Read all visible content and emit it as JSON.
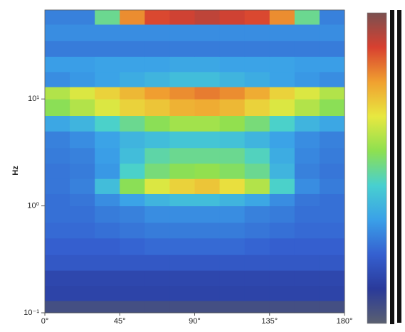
{
  "chart_data": {
    "type": "heatmap",
    "ylabel": "Hz",
    "log_y": true,
    "xbins": [
      0,
      15,
      30,
      45,
      60,
      75,
      90,
      105,
      120,
      135,
      150,
      165,
      180
    ],
    "ybins": [
      0.1,
      0.13,
      0.18,
      0.25,
      0.35,
      0.5,
      0.7,
      1,
      1.3,
      1.8,
      2.5,
      3.5,
      5,
      7,
      10,
      13,
      18,
      25,
      35,
      50,
      68
    ],
    "xlim": [
      0,
      180
    ],
    "ylim": [
      0.1,
      68
    ],
    "xticks": [
      {
        "value": 0,
        "label": "0°"
      },
      {
        "value": 45,
        "label": "45°"
      },
      {
        "value": 90,
        "label": "90°"
      },
      {
        "value": 135,
        "label": "135°"
      },
      {
        "value": 180,
        "label": "180°"
      }
    ],
    "yticks": [
      {
        "value": 0.1,
        "label": "10⁻¹"
      },
      {
        "value": 1,
        "label": "10⁰"
      },
      {
        "value": 10,
        "label": "10¹"
      }
    ],
    "zlim": [
      0,
      1
    ],
    "colormap": [
      "#5a6070",
      "#2a3a9a",
      "#3560d0",
      "#3aa0e8",
      "#48d0d0",
      "#8ee050",
      "#e8e840",
      "#f0a030",
      "#d84030",
      "#7a5050"
    ],
    "z": [
      [
        0.05,
        0.05,
        0.05,
        0.05,
        0.05,
        0.05,
        0.05,
        0.05,
        0.05,
        0.05,
        0.05,
        0.05
      ],
      [
        0.14,
        0.14,
        0.14,
        0.14,
        0.14,
        0.14,
        0.14,
        0.14,
        0.14,
        0.14,
        0.14,
        0.14
      ],
      [
        0.15,
        0.15,
        0.15,
        0.15,
        0.15,
        0.15,
        0.15,
        0.15,
        0.15,
        0.15,
        0.15,
        0.15
      ],
      [
        0.2,
        0.2,
        0.2,
        0.2,
        0.2,
        0.2,
        0.2,
        0.2,
        0.2,
        0.2,
        0.2,
        0.2
      ],
      [
        0.22,
        0.22,
        0.22,
        0.23,
        0.24,
        0.24,
        0.24,
        0.24,
        0.23,
        0.22,
        0.22,
        0.22
      ],
      [
        0.24,
        0.24,
        0.25,
        0.26,
        0.27,
        0.27,
        0.27,
        0.27,
        0.26,
        0.25,
        0.24,
        0.24
      ],
      [
        0.25,
        0.25,
        0.27,
        0.28,
        0.3,
        0.3,
        0.3,
        0.3,
        0.28,
        0.27,
        0.25,
        0.25
      ],
      [
        0.25,
        0.26,
        0.3,
        0.34,
        0.38,
        0.4,
        0.4,
        0.38,
        0.35,
        0.3,
        0.26,
        0.25
      ],
      [
        0.26,
        0.28,
        0.4,
        0.55,
        0.65,
        0.7,
        0.72,
        0.68,
        0.6,
        0.45,
        0.3,
        0.27
      ],
      [
        0.26,
        0.27,
        0.32,
        0.45,
        0.52,
        0.55,
        0.56,
        0.54,
        0.5,
        0.38,
        0.28,
        0.26
      ],
      [
        0.27,
        0.28,
        0.33,
        0.4,
        0.48,
        0.5,
        0.5,
        0.5,
        0.46,
        0.36,
        0.29,
        0.27
      ],
      [
        0.28,
        0.3,
        0.34,
        0.38,
        0.4,
        0.42,
        0.42,
        0.41,
        0.38,
        0.34,
        0.3,
        0.28
      ],
      [
        0.35,
        0.38,
        0.45,
        0.5,
        0.55,
        0.58,
        0.58,
        0.56,
        0.52,
        0.45,
        0.38,
        0.35
      ],
      [
        0.55,
        0.6,
        0.65,
        0.7,
        0.72,
        0.75,
        0.76,
        0.74,
        0.7,
        0.65,
        0.6,
        0.55
      ],
      [
        0.6,
        0.65,
        0.7,
        0.74,
        0.78,
        0.8,
        0.82,
        0.8,
        0.76,
        0.7,
        0.65,
        0.6
      ],
      [
        0.3,
        0.32,
        0.34,
        0.36,
        0.38,
        0.4,
        0.4,
        0.38,
        0.36,
        0.34,
        0.32,
        0.3
      ],
      [
        0.33,
        0.33,
        0.34,
        0.34,
        0.34,
        0.35,
        0.35,
        0.34,
        0.34,
        0.34,
        0.33,
        0.33
      ],
      [
        0.27,
        0.27,
        0.27,
        0.27,
        0.27,
        0.27,
        0.27,
        0.27,
        0.27,
        0.27,
        0.27,
        0.27
      ],
      [
        0.3,
        0.3,
        0.3,
        0.3,
        0.3,
        0.3,
        0.3,
        0.3,
        0.3,
        0.3,
        0.3,
        0.3
      ],
      [
        0.28,
        0.28,
        0.5,
        0.8,
        0.88,
        0.9,
        0.92,
        0.9,
        0.88,
        0.8,
        0.5,
        0.28
      ]
    ]
  }
}
